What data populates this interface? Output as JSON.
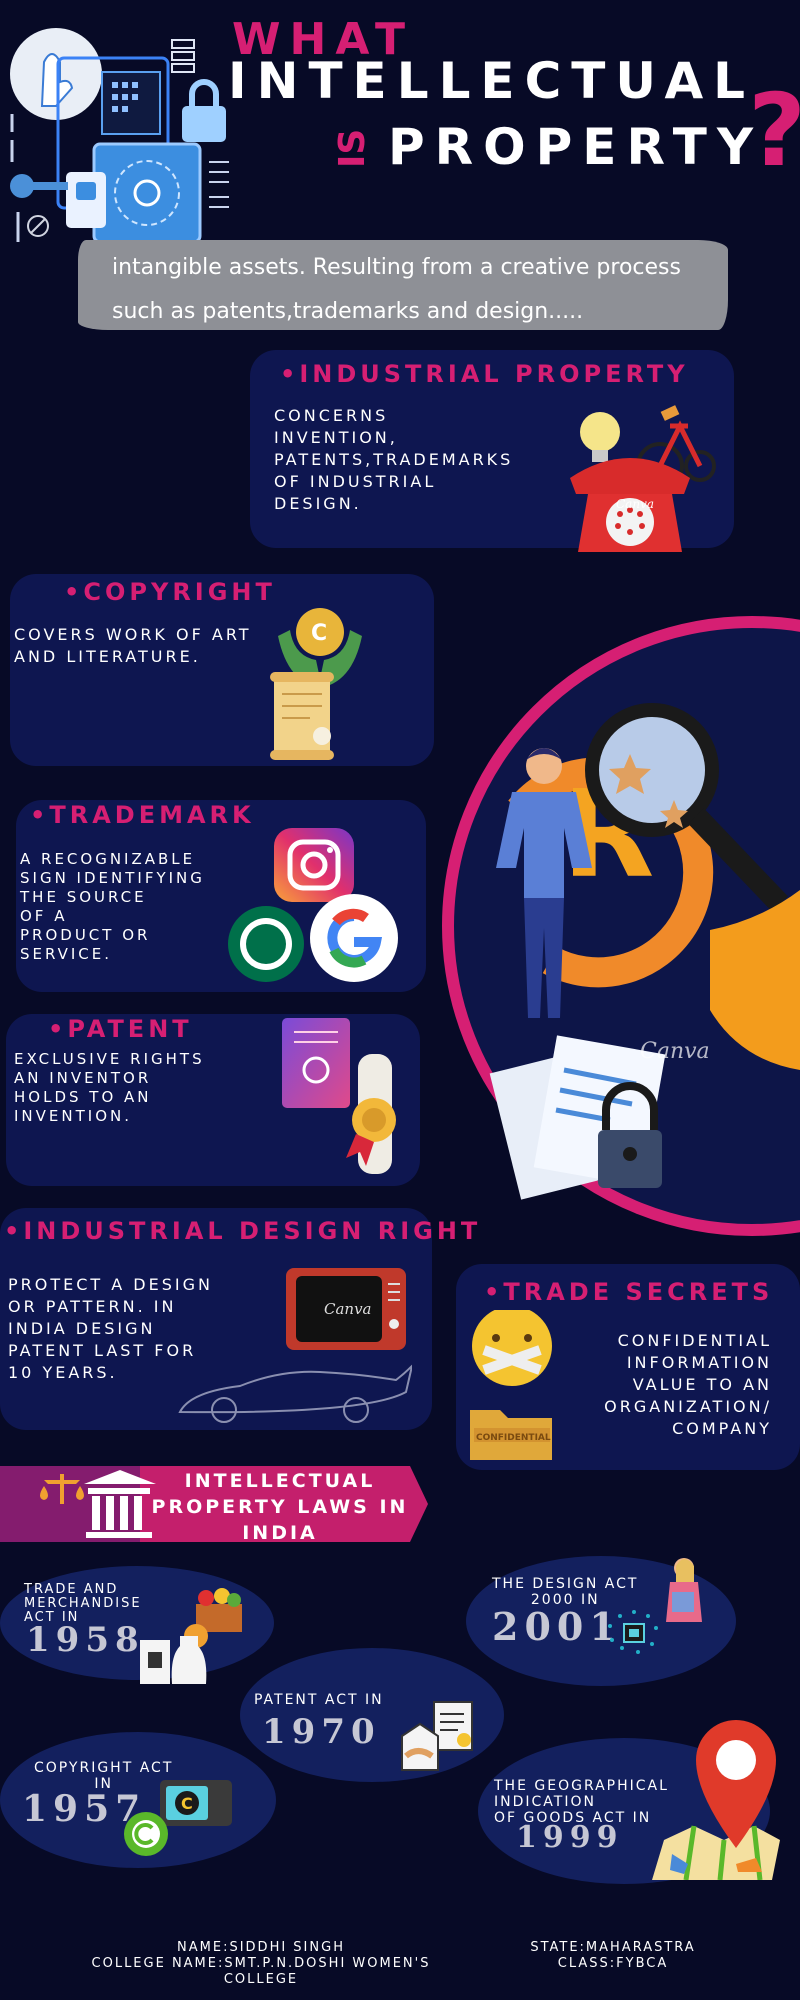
{
  "title": {
    "what": "WHAT",
    "intellectual": "INTELLECTUAL",
    "is": "IS",
    "property": "PROPERTY",
    "question": "?"
  },
  "definition": "intangible assets. Resulting from a creative process\nsuch as patents,trademarks and design.....",
  "sections": {
    "industrial_property": {
      "heading": "•INDUSTRIAL PROPERTY",
      "text": "CONCERNS\nINVENTION,\nPATENTS,TRADEMARKS\nOF INDUSTRIAL\nDESIGN."
    },
    "copyright": {
      "heading": "•COPYRIGHT",
      "text": "COVERS WORK OF ART\nAND LITERATURE."
    },
    "trademark": {
      "heading": "•TRADEMARK",
      "text": "A RECOGNIZABLE\nSIGN IDENTIFYING\nTHE SOURCE\n OF A\nPRODUCT OR\n SERVICE."
    },
    "patent": {
      "heading": "•PATENT",
      "text": "EXCLUSIVE RIGHTS\nAN INVENTOR\nHOLDS TO AN\nINVENTION."
    },
    "industrial_design": {
      "heading": "•INDUSTRIAL DESIGN RIGHT",
      "text": "PROTECT A DESIGN\nOR PATTERN. IN\nINDIA DESIGN\nPATENT LAST FOR\n10 YEARS."
    },
    "trade_secrets": {
      "heading": "•TRADE SECRETS",
      "text": "CONFIDENTIAL\nINFORMATION\nVALUE TO AN\nORGANIZATION/\nCOMPANY"
    }
  },
  "image_labels": {
    "canva_1": "Canva",
    "canva_2": "Canva",
    "canva_3": "Canva",
    "confidential": "CONFIDENTIAL",
    "registered": "R",
    "copyright_c": "C"
  },
  "laws_banner": "INTELLECTUAL\nPROPERTY LAWS IN\nINDIA",
  "laws": [
    {
      "label": "TRADE AND\nMERCHANDISE\nACT IN",
      "year": "1958"
    },
    {
      "label": "THE DESIGN ACT\n2000 IN",
      "year": "2001"
    },
    {
      "label": "PATENT ACT IN",
      "year": "1970"
    },
    {
      "label": "COPYRIGHT ACT\nIN",
      "year": "1957"
    },
    {
      "label": "THE GEOGRAPHICAL\nINDICATION\nOF GOODS ACT IN",
      "year": "1999"
    }
  ],
  "footer": {
    "left": "NAME:SIDDHI SINGH\nCOLLEGE NAME:SMT.P.N.DOSHI WOMEN'S\nCOLLEGE",
    "right": "STATE:MAHARASTRA\nCLASS:FYBCA"
  },
  "colors": {
    "background": "#070a26",
    "card": "#0e1650",
    "accent_pink": "#d61f73",
    "brush_gray": "#8e9096"
  }
}
